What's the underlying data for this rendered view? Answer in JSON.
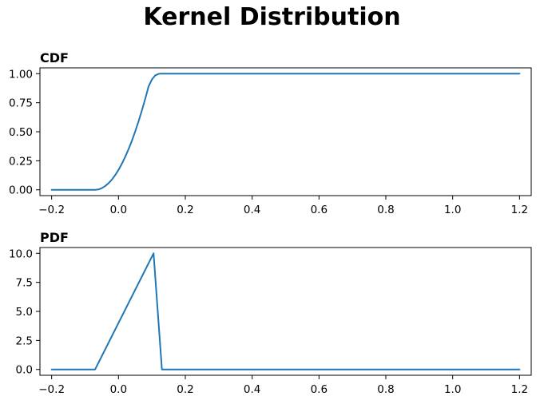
{
  "figure": {
    "title": "Kernel Distribution"
  },
  "chart_data": [
    {
      "type": "line",
      "title": "CDF",
      "xlabel": "",
      "ylabel": "",
      "xlim": [
        -0.235,
        1.235
      ],
      "ylim": [
        -0.05,
        1.05
      ],
      "xticks": [
        -0.2,
        0.0,
        0.2,
        0.4,
        0.6,
        0.8,
        1.0,
        1.2
      ],
      "xtick_labels": [
        "−0.2",
        "0.0",
        "0.2",
        "0.4",
        "0.6",
        "0.8",
        "1.0",
        "1.2"
      ],
      "yticks": [
        0.0,
        0.25,
        0.5,
        0.75,
        1.0
      ],
      "ytick_labels": [
        "0.00",
        "0.25",
        "0.50",
        "0.75",
        "1.00"
      ],
      "grid": false,
      "color": "#1f77b4",
      "series": [
        {
          "x": [
            -0.2,
            -0.1,
            -0.07,
            -0.06,
            -0.05,
            -0.04,
            -0.03,
            -0.02,
            -0.01,
            0.0,
            0.01,
            0.02,
            0.03,
            0.04,
            0.05,
            0.06,
            0.07,
            0.08,
            0.09,
            0.1,
            0.11,
            0.12,
            0.125,
            0.13,
            0.2,
            0.4,
            0.6,
            0.8,
            1.0,
            1.2
          ],
          "y": [
            0.0,
            0.0,
            0.0,
            0.003,
            0.014,
            0.032,
            0.056,
            0.087,
            0.126,
            0.171,
            0.224,
            0.283,
            0.349,
            0.422,
            0.502,
            0.589,
            0.683,
            0.783,
            0.89,
            0.95,
            0.985,
            0.998,
            1.0,
            1.0,
            1.0,
            1.0,
            1.0,
            1.0,
            1.0,
            1.0
          ]
        }
      ]
    },
    {
      "type": "line",
      "title": "PDF",
      "xlabel": "",
      "ylabel": "",
      "xlim": [
        -0.235,
        1.235
      ],
      "ylim": [
        -0.5,
        10.5
      ],
      "xticks": [
        -0.2,
        0.0,
        0.2,
        0.4,
        0.6,
        0.8,
        1.0,
        1.2
      ],
      "xtick_labels": [
        "−0.2",
        "0.0",
        "0.2",
        "0.4",
        "0.6",
        "0.8",
        "1.0",
        "1.2"
      ],
      "yticks": [
        0.0,
        2.5,
        5.0,
        7.5,
        10.0
      ],
      "ytick_labels": [
        "0.0",
        "2.5",
        "5.0",
        "7.5",
        "10.0"
      ],
      "grid": false,
      "color": "#1f77b4",
      "series": [
        {
          "x": [
            -0.2,
            -0.07,
            0.105,
            0.13,
            1.2
          ],
          "y": [
            0.0,
            0.0,
            10.0,
            0.0,
            0.0
          ]
        }
      ]
    }
  ]
}
